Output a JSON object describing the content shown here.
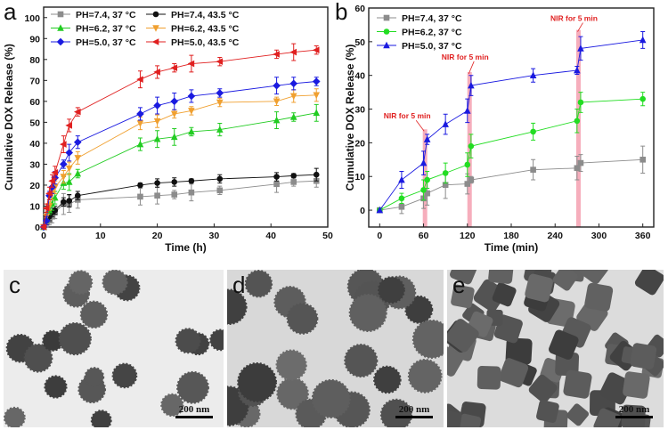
{
  "chart_data": [
    {
      "type": "line",
      "panel_label": "a",
      "xlabel": "Time (h)",
      "ylabel": "Cumulative DOX Release (%)",
      "xlim": [
        0,
        50
      ],
      "ylim": [
        0,
        105
      ],
      "xticks": [
        0,
        10,
        20,
        30,
        40,
        50
      ],
      "yticks": [
        0,
        10,
        20,
        30,
        40,
        50,
        60,
        70,
        80,
        90,
        100
      ],
      "grid": false,
      "legend": "top-left",
      "x": [
        0,
        0.5,
        1,
        1.5,
        2,
        3.5,
        4.5,
        6,
        17,
        20,
        23,
        26,
        31,
        41,
        44,
        48
      ],
      "series": [
        {
          "name": "PH=7.4, 37 °C",
          "color": "#8c8c8c",
          "marker": "square",
          "values": [
            0,
            2,
            3,
            5,
            7,
            11,
            11,
            13,
            14.5,
            15,
            15.5,
            16.5,
            17.5,
            20.5,
            21.5,
            22
          ],
          "err": [
            1,
            2,
            2,
            3,
            3,
            5,
            4,
            4,
            4,
            4,
            2,
            4,
            2,
            4,
            2,
            3
          ]
        },
        {
          "name": "PH=7.4, 43.5 °C",
          "color": "#111111",
          "marker": "circle",
          "values": [
            0,
            3,
            5,
            7,
            8,
            12,
            12.5,
            15,
            20,
            21,
            21.5,
            22,
            23,
            24,
            24.5,
            25
          ],
          "err": [
            1,
            2,
            2,
            2,
            2,
            2,
            3,
            2,
            1,
            2,
            2,
            1,
            2,
            2,
            1,
            3
          ]
        },
        {
          "name": "PH=6.2, 37 °C",
          "color": "#22cc22",
          "marker": "triangle-up",
          "values": [
            0,
            4,
            8,
            11,
            14,
            21,
            21.5,
            25.5,
            39.5,
            42,
            43,
            45.5,
            46.5,
            51,
            52.5,
            54.5
          ],
          "err": [
            1,
            2,
            2,
            3,
            3,
            3,
            4,
            2,
            3,
            4,
            4,
            2,
            3,
            4,
            2,
            4
          ]
        },
        {
          "name": "PH=6.2, 43.5 °C",
          "color": "#f0a030",
          "marker": "triangle-down",
          "values": [
            0,
            5,
            10,
            16,
            19,
            24,
            28,
            33,
            49.5,
            50.5,
            54,
            55.5,
            59.5,
            60,
            62.5,
            63
          ],
          "err": [
            1,
            2,
            2,
            3,
            3,
            3,
            3,
            3,
            3,
            3,
            2,
            2,
            2,
            2,
            3,
            3
          ]
        },
        {
          "name": "PH=5.0, 37 °C",
          "color": "#1a1ae0",
          "marker": "diamond",
          "values": [
            0,
            3,
            15,
            19,
            23.5,
            30,
            35.5,
            40.5,
            54,
            58,
            60,
            62.5,
            64,
            67.5,
            68.5,
            69.5
          ],
          "err": [
            1,
            2,
            2,
            3,
            3,
            2,
            4,
            3,
            3,
            4,
            4,
            3,
            2,
            4,
            3,
            2
          ]
        },
        {
          "name": "PH=5.0, 43.5 °C",
          "color": "#e02020",
          "marker": "triangle-left",
          "values": [
            0,
            9,
            16,
            22,
            26,
            39.5,
            48.5,
            55,
            70.5,
            74,
            76,
            78,
            79,
            82.5,
            83.5,
            84.5
          ],
          "err": [
            1,
            2,
            3,
            3,
            3,
            4,
            3,
            2,
            4,
            3,
            2,
            4,
            2,
            2,
            4,
            2
          ]
        }
      ]
    },
    {
      "type": "line",
      "panel_label": "b",
      "xlabel": "Time (min)",
      "ylabel": "Cumulative DOX Release (%)",
      "xlim": [
        -15,
        375
      ],
      "ylim": [
        -5,
        60
      ],
      "xticks": [
        0,
        60,
        120,
        180,
        240,
        300,
        360
      ],
      "yticks": [
        0,
        10,
        20,
        30,
        40,
        50,
        60
      ],
      "grid": false,
      "legend": "top-left",
      "x": [
        0,
        30,
        60,
        65,
        90,
        120,
        125,
        210,
        270,
        275,
        360
      ],
      "series": [
        {
          "name": "PH=7.4, 37 °C",
          "color": "#8c8c8c",
          "marker": "square",
          "values": [
            0,
            1,
            3.5,
            5,
            7.5,
            7.8,
            9,
            12,
            12.5,
            14,
            15
          ],
          "err": [
            0,
            2,
            3,
            3.5,
            4,
            3,
            1,
            3,
            3.5,
            2.5,
            4
          ]
        },
        {
          "name": "PH=6.2, 37 °C",
          "color": "#22dd22",
          "marker": "circle",
          "values": [
            0,
            3.5,
            6,
            9,
            11,
            13.5,
            19,
            23.3,
            26.5,
            32,
            33
          ],
          "err": [
            0,
            1.5,
            3,
            2.5,
            3,
            3.5,
            3.5,
            2.5,
            3.5,
            3,
            2
          ]
        },
        {
          "name": "PH=5.0, 37 °C",
          "color": "#1a1ae0",
          "marker": "triangle-up",
          "values": [
            0,
            9,
            14,
            21,
            25.5,
            29.5,
            37,
            40,
            41.5,
            48,
            50.5
          ],
          "err": [
            0,
            2.5,
            3.5,
            1.5,
            3,
            3.5,
            3,
            2,
            1.2,
            3.5,
            2.5
          ]
        }
      ],
      "nir_bands": [
        {
          "x": 62,
          "top": 24,
          "label": "NIR for 5 min"
        },
        {
          "x": 123,
          "top": 41,
          "label": "NIR for 5 min"
        },
        {
          "x": 272,
          "top": 53.5,
          "label": "NIR for 5 min"
        }
      ],
      "band_color": "#f4a0b0",
      "annotation_color": "#e02020"
    }
  ],
  "images": [
    {
      "label": "c",
      "scale": "200 nm"
    },
    {
      "label": "d",
      "scale": "200 nm"
    },
    {
      "label": "e",
      "scale": "200 nm"
    }
  ]
}
